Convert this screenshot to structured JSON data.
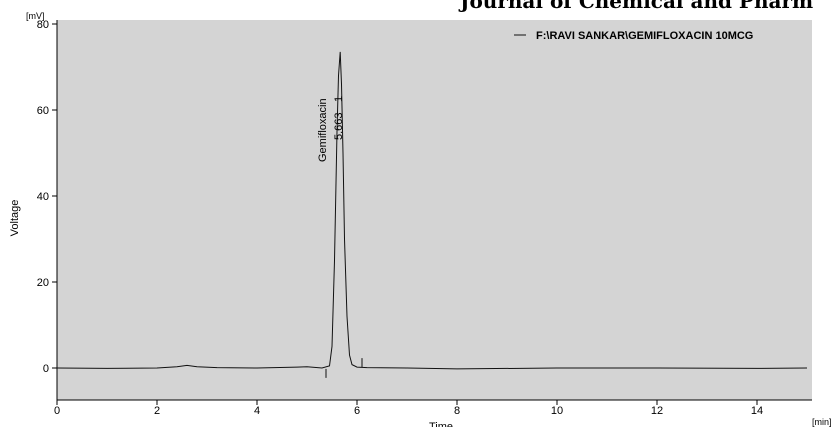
{
  "header": {
    "text": "Journal of Chemical and Pharm"
  },
  "colors": {
    "plot_background": "#d4d4d4",
    "trace": "#111111",
    "axis": "#000000"
  },
  "chart_data": {
    "type": "line",
    "title": "",
    "xlabel": "Time",
    "x_unit": "[min]",
    "ylabel": "Voltage",
    "y_unit": "[mV]",
    "xlim": [
      0,
      15
    ],
    "ylim": [
      -8,
      80
    ],
    "x_ticks": [
      0,
      2,
      4,
      6,
      8,
      10,
      12,
      14
    ],
    "y_ticks": [
      0,
      20,
      40,
      60,
      80
    ],
    "grid": false,
    "legend": {
      "position": "top-right",
      "entries": [
        "F:\\RAVI SANKAR\\GEMIFLOXACIN 10MCG"
      ]
    },
    "series": [
      {
        "name": "F:\\RAVI SANKAR\\GEMIFLOXACIN 10MCG",
        "x": [
          0,
          1.0,
          2.0,
          2.4,
          2.6,
          2.8,
          3.2,
          4.0,
          4.8,
          5.0,
          5.3,
          5.45,
          5.5,
          5.55,
          5.6,
          5.63,
          5.663,
          5.69,
          5.72,
          5.75,
          5.8,
          5.85,
          5.9,
          6.0,
          6.2,
          7.0,
          8.0,
          10.0,
          12.0,
          14.0,
          15.0
        ],
        "y": [
          0,
          -0.1,
          0,
          0.3,
          0.6,
          0.3,
          0.1,
          0,
          0.2,
          0.3,
          0,
          0.5,
          5,
          25,
          55,
          68,
          73.5,
          66,
          50,
          30,
          12,
          3,
          0.8,
          0.2,
          0.1,
          0,
          -0.2,
          0,
          0,
          -0.1,
          0
        ]
      }
    ],
    "peaks": [
      {
        "name": "Gemifloxacin",
        "retention_time": "5.663",
        "number": "1",
        "x": 5.663
      }
    ],
    "integration_markers": [
      5.38,
      6.1
    ]
  }
}
